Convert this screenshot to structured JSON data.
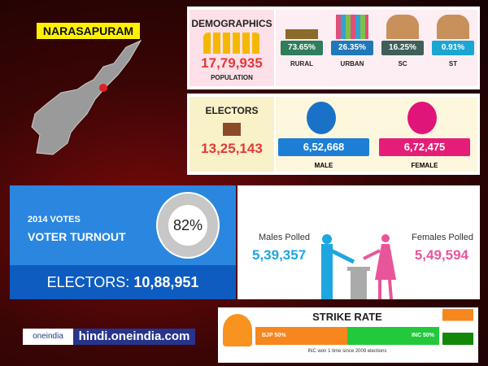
{
  "constituency": "NARASAPURAM",
  "demographics": {
    "title": "DEMOGRAPHICS",
    "population": "17,79,935",
    "population_label": "POPULATION",
    "stats": [
      {
        "value": "73.65%",
        "label": "RURAL",
        "color": "#2e7d5b"
      },
      {
        "value": "26.35%",
        "label": "URBAN",
        "color": "#1f78b8"
      },
      {
        "value": "16.25%",
        "label": "SC",
        "color": "#3f5f58"
      },
      {
        "value": "0.91%",
        "label": "ST",
        "color": "#1aa6d3"
      }
    ]
  },
  "electors": {
    "title": "ELECTORS",
    "total": "13,25,143",
    "male": "6,52,668",
    "male_label": "MALE",
    "female": "6,72,475",
    "female_label": "FEMALE"
  },
  "turnout": {
    "year_label": "2014 VOTES",
    "title": "VOTER TURNOUT",
    "percent": "82%",
    "percent_value": 82,
    "electors_label": "ELECTORS:",
    "electors": "10,88,951"
  },
  "polled": {
    "males_label": "Males Polled",
    "males": "5,39,357",
    "females_label": "Females Polled",
    "females": "5,49,594"
  },
  "brand": {
    "logo": "oneindia",
    "url": "hindi.oneindia.com"
  },
  "strike_rate": {
    "title": "STRIKE RATE",
    "bjp": "BJP 50%",
    "inc": "INC 50%",
    "bjp_value": 50,
    "inc_value": 50,
    "note": "INC won 1 time since 2009 elections"
  }
}
